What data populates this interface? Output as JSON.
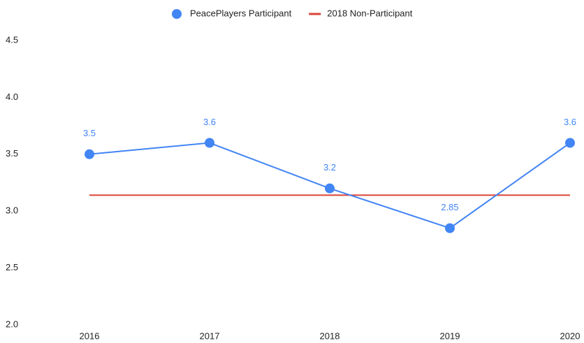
{
  "chart_data": {
    "type": "line",
    "categories": [
      "2016",
      "2017",
      "2018",
      "2019",
      "2020"
    ],
    "series": [
      {
        "name": "PeacePlayers Participant",
        "color": "#4285f4",
        "values": [
          3.5,
          3.6,
          3.2,
          2.85,
          3.6
        ]
      },
      {
        "name": "2018 Non-Participant",
        "color": "#db4437",
        "values": [
          3.14,
          3.14,
          3.14,
          3.14,
          3.14
        ]
      }
    ],
    "ylim": [
      2,
      4.5
    ],
    "yticks": [
      {
        "value": 2,
        "label": "2.0"
      },
      2.5,
      {
        "value": 3,
        "label": "3.0"
      },
      3.5,
      {
        "value": 4,
        "label": "4.0"
      },
      4.5
    ],
    "grid": false,
    "legend": "top"
  }
}
